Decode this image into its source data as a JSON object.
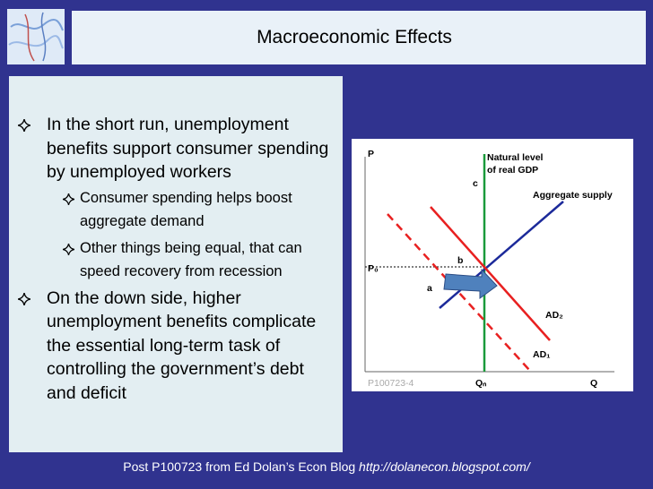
{
  "header": {
    "title": "Macroeconomic Effects"
  },
  "bullets": [
    {
      "lines": [
        "In the short run, unemployment",
        "benefits support consumer spending",
        "by unemployed workers"
      ],
      "sub": [
        {
          "lines": [
            "Consumer spending helps boost",
            "aggregate demand"
          ]
        },
        {
          "lines": [
            "Other things being equal, that can",
            "speed recovery from recession"
          ]
        }
      ]
    },
    {
      "lines": [
        "On the down side, higher",
        "unemployment benefits complicate",
        "the essential long-term task of",
        "controlling the government’s debt",
        "and deficit"
      ]
    }
  ],
  "diagram": {
    "y_axis": "P",
    "x_axis": "Q",
    "natural_level": [
      "Natural level",
      "of real GDP"
    ],
    "point_c": "c",
    "supply": "Aggregate supply",
    "point_b": "b",
    "price": "P₀",
    "point_a": "a",
    "ad2": "AD₂",
    "ad1": "AD₁",
    "code": "P100723-4",
    "qn": "Qₙ"
  },
  "footer": {
    "text": "Post P100723 from Ed Dolan’s Econ Blog ",
    "url": "http://dolanecon.blogspot.com/"
  }
}
